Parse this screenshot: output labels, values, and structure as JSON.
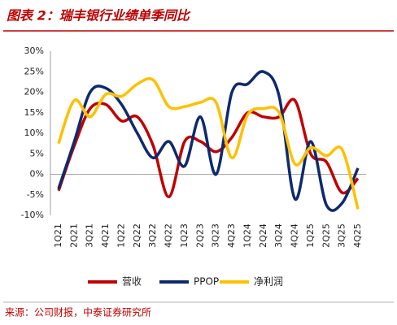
{
  "chart_data": {
    "type": "line",
    "title": "图表 2：瑞丰银行业绩单季同比",
    "source": "来源：公司财报，中泰证券研究所",
    "categories": [
      "1Q21",
      "2Q21",
      "3Q21",
      "4Q21",
      "1Q22",
      "2Q22",
      "3Q22",
      "4Q22",
      "1Q23",
      "2Q23",
      "3Q23",
      "4Q23",
      "1Q24",
      "2Q24",
      "3Q24",
      "4Q24",
      "1Q25",
      "2Q25",
      "3Q25",
      "4Q25"
    ],
    "series": [
      {
        "name": "营收",
        "color": "#c00000",
        "values": [
          -4,
          7,
          16,
          17,
          13,
          14,
          7,
          -5.5,
          8,
          8,
          5.5,
          9,
          15,
          14,
          14,
          18,
          5,
          3,
          -4.5,
          -1
        ]
      },
      {
        "name": "PPOP",
        "color": "#0e2a6e",
        "values": [
          -3.5,
          8,
          20,
          21,
          17,
          10,
          4,
          8,
          2,
          14,
          0,
          20,
          22,
          25,
          19,
          -6,
          8,
          -7.5,
          -7,
          1.5
        ]
      },
      {
        "name": "净利润",
        "color": "#ffc000",
        "values": [
          7.5,
          18,
          14,
          19.5,
          19,
          22,
          23,
          16.5,
          16.5,
          17.5,
          17.5,
          4,
          14.5,
          16,
          15,
          2.5,
          6.5,
          4.5,
          6,
          -8.5
        ]
      }
    ],
    "ylim": [
      -10,
      30
    ],
    "yticks": [
      {
        "value": -10,
        "label": "-10%"
      },
      {
        "value": -5,
        "label": "-5%"
      },
      {
        "value": 0,
        "label": "0%"
      },
      {
        "value": 5,
        "label": "5%"
      },
      {
        "value": 10,
        "label": "10%"
      },
      {
        "value": 15,
        "label": "15%"
      },
      {
        "value": 20,
        "label": "20%"
      },
      {
        "value": 25,
        "label": "25%"
      },
      {
        "value": 30,
        "label": "30%"
      }
    ],
    "legend": "bottom"
  }
}
